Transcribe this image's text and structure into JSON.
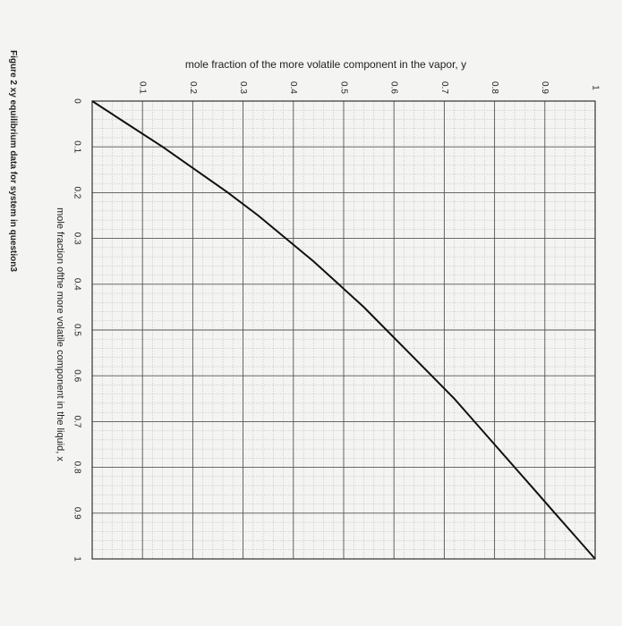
{
  "caption": "Figure 2 xy equilibrium data for system in question3",
  "chart_data": {
    "type": "line",
    "xlabel": "mole fraction ofthe more volatile component in the liquid, x",
    "ylabel": "mole fraction of the more volatile component in the vapor, y",
    "xlim": [
      0,
      1
    ],
    "ylim": [
      0,
      1
    ],
    "grid": true,
    "x_ticks": [
      {
        "value": 0,
        "label": "0"
      },
      {
        "value": 0.1,
        "label": "0.1"
      },
      {
        "value": 0.2,
        "label": "0.2"
      },
      {
        "value": 0.3,
        "label": "0.3"
      },
      {
        "value": 0.4,
        "label": "0.4"
      },
      {
        "value": 0.5,
        "label": "0.5"
      },
      {
        "value": 0.6,
        "label": "0.6"
      },
      {
        "value": 0.7,
        "label": "0.7"
      },
      {
        "value": 0.8,
        "label": "0.8"
      },
      {
        "value": 0.9,
        "label": "0.9"
      },
      {
        "value": 1,
        "label": "1"
      }
    ],
    "y_ticks": [
      {
        "value": 0,
        "label": "0"
      },
      {
        "value": 0.1,
        "label": "0.1"
      },
      {
        "value": 0.2,
        "label": "0.2"
      },
      {
        "value": 0.3,
        "label": "0.3"
      },
      {
        "value": 0.4,
        "label": "0.4"
      },
      {
        "value": 0.5,
        "label": "0.5"
      },
      {
        "value": 0.6,
        "label": "0.6"
      },
      {
        "value": 0.7,
        "label": "0.7"
      },
      {
        "value": 0.8,
        "label": "0.8"
      },
      {
        "value": 0.9,
        "label": "0.9"
      },
      {
        "value": 1,
        "label": "1"
      }
    ],
    "series": [
      {
        "x": [
          0,
          0.05,
          0.1,
          0.15,
          0.2,
          0.25,
          0.3,
          0.35,
          0.4,
          0.45,
          0.5,
          0.55,
          0.6,
          0.65,
          0.7,
          0.75,
          0.8,
          0.85,
          0.9,
          0.95,
          1.0
        ],
        "y": [
          0,
          0.07,
          0.14,
          0.205,
          0.27,
          0.33,
          0.385,
          0.44,
          0.49,
          0.54,
          0.585,
          0.63,
          0.675,
          0.72,
          0.76,
          0.8,
          0.84,
          0.88,
          0.92,
          0.96,
          1.0
        ],
        "color": "#111111"
      }
    ]
  }
}
